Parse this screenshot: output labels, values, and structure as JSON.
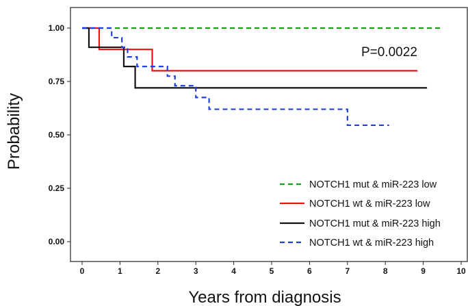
{
  "chart_data": {
    "type": "line",
    "xlabel": "Years from diagnosis",
    "ylabel": "Probability",
    "xlim": [
      -0.3,
      10.3
    ],
    "ylim": [
      -0.07,
      1.07
    ],
    "x_ticks": [
      "0",
      "1",
      "2",
      "3",
      "4",
      "5",
      "6",
      "7",
      "8",
      "9",
      "10"
    ],
    "y_ticks": [
      "0.00",
      "0.25",
      "0.50",
      "0.75",
      "1.00"
    ],
    "annotation": "P=0.0022",
    "grid": false,
    "legend_position": "bottom-right",
    "series": [
      {
        "name": "NOTCH1 mut & miR-223 low",
        "color": "#1a9a1a",
        "dash": "dashed",
        "step_points": [
          [
            0,
            1.0
          ],
          [
            9.5,
            1.0
          ]
        ]
      },
      {
        "name": "NOTCH1 wt & miR-223 low",
        "color": "#ee1111",
        "dash": "solid",
        "step_points": [
          [
            0,
            1.0
          ],
          [
            0.45,
            0.9
          ],
          [
            1.85,
            0.8
          ],
          [
            8.85,
            0.8
          ]
        ]
      },
      {
        "name": "NOTCH1 mut & miR-223 high",
        "color": "#111111",
        "dash": "solid",
        "step_points": [
          [
            0,
            1.0
          ],
          [
            0.18,
            0.91
          ],
          [
            1.1,
            0.82
          ],
          [
            1.4,
            0.72
          ],
          [
            9.1,
            0.72
          ]
        ]
      },
      {
        "name": "NOTCH1 wt & miR-223 high",
        "color": "#1f3fdd",
        "dash": "dashed",
        "step_points": [
          [
            0,
            1.0
          ],
          [
            0.78,
            0.955
          ],
          [
            1.05,
            0.91
          ],
          [
            1.2,
            0.865
          ],
          [
            1.45,
            0.82
          ],
          [
            2.25,
            0.775
          ],
          [
            2.45,
            0.73
          ],
          [
            3.0,
            0.675
          ],
          [
            3.35,
            0.62
          ],
          [
            7.0,
            0.545
          ],
          [
            8.1,
            0.545
          ]
        ]
      }
    ]
  }
}
